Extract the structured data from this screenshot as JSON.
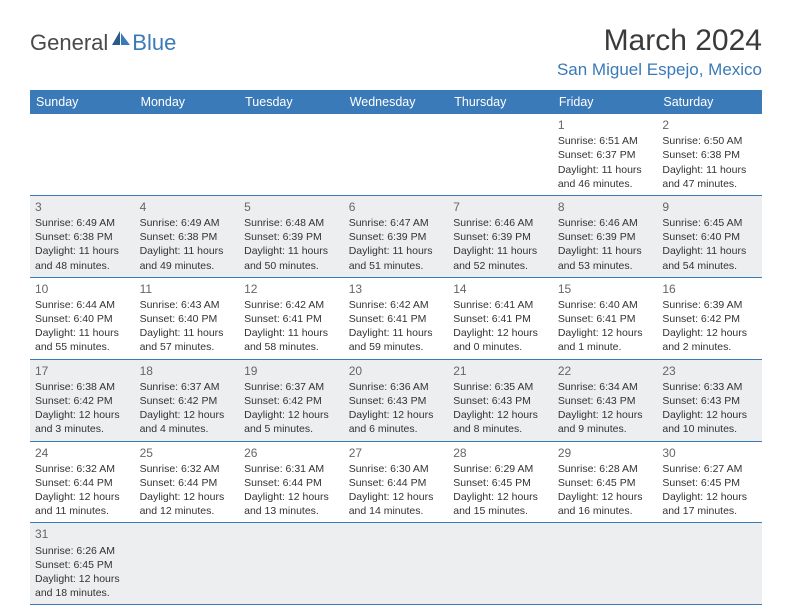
{
  "logo": {
    "general": "General",
    "blue": "Blue"
  },
  "title": "March 2024",
  "location": "San Miguel Espejo, Mexico",
  "day_headers": [
    "Sunday",
    "Monday",
    "Tuesday",
    "Wednesday",
    "Thursday",
    "Friday",
    "Saturday"
  ],
  "colors": {
    "brand_blue": "#3a7ab8",
    "header_text": "#ffffff",
    "body_text": "#333333",
    "alt_row_bg": "#eceef0",
    "border": "#3a7ab8"
  },
  "weeks": [
    [
      null,
      null,
      null,
      null,
      null,
      {
        "n": "1",
        "sr": "Sunrise: 6:51 AM",
        "ss": "Sunset: 6:37 PM",
        "dl": "Daylight: 11 hours and 46 minutes."
      },
      {
        "n": "2",
        "sr": "Sunrise: 6:50 AM",
        "ss": "Sunset: 6:38 PM",
        "dl": "Daylight: 11 hours and 47 minutes."
      }
    ],
    [
      {
        "n": "3",
        "sr": "Sunrise: 6:49 AM",
        "ss": "Sunset: 6:38 PM",
        "dl": "Daylight: 11 hours and 48 minutes."
      },
      {
        "n": "4",
        "sr": "Sunrise: 6:49 AM",
        "ss": "Sunset: 6:38 PM",
        "dl": "Daylight: 11 hours and 49 minutes."
      },
      {
        "n": "5",
        "sr": "Sunrise: 6:48 AM",
        "ss": "Sunset: 6:39 PM",
        "dl": "Daylight: 11 hours and 50 minutes."
      },
      {
        "n": "6",
        "sr": "Sunrise: 6:47 AM",
        "ss": "Sunset: 6:39 PM",
        "dl": "Daylight: 11 hours and 51 minutes."
      },
      {
        "n": "7",
        "sr": "Sunrise: 6:46 AM",
        "ss": "Sunset: 6:39 PM",
        "dl": "Daylight: 11 hours and 52 minutes."
      },
      {
        "n": "8",
        "sr": "Sunrise: 6:46 AM",
        "ss": "Sunset: 6:39 PM",
        "dl": "Daylight: 11 hours and 53 minutes."
      },
      {
        "n": "9",
        "sr": "Sunrise: 6:45 AM",
        "ss": "Sunset: 6:40 PM",
        "dl": "Daylight: 11 hours and 54 minutes."
      }
    ],
    [
      {
        "n": "10",
        "sr": "Sunrise: 6:44 AM",
        "ss": "Sunset: 6:40 PM",
        "dl": "Daylight: 11 hours and 55 minutes."
      },
      {
        "n": "11",
        "sr": "Sunrise: 6:43 AM",
        "ss": "Sunset: 6:40 PM",
        "dl": "Daylight: 11 hours and 57 minutes."
      },
      {
        "n": "12",
        "sr": "Sunrise: 6:42 AM",
        "ss": "Sunset: 6:41 PM",
        "dl": "Daylight: 11 hours and 58 minutes."
      },
      {
        "n": "13",
        "sr": "Sunrise: 6:42 AM",
        "ss": "Sunset: 6:41 PM",
        "dl": "Daylight: 11 hours and 59 minutes."
      },
      {
        "n": "14",
        "sr": "Sunrise: 6:41 AM",
        "ss": "Sunset: 6:41 PM",
        "dl": "Daylight: 12 hours and 0 minutes."
      },
      {
        "n": "15",
        "sr": "Sunrise: 6:40 AM",
        "ss": "Sunset: 6:41 PM",
        "dl": "Daylight: 12 hours and 1 minute."
      },
      {
        "n": "16",
        "sr": "Sunrise: 6:39 AM",
        "ss": "Sunset: 6:42 PM",
        "dl": "Daylight: 12 hours and 2 minutes."
      }
    ],
    [
      {
        "n": "17",
        "sr": "Sunrise: 6:38 AM",
        "ss": "Sunset: 6:42 PM",
        "dl": "Daylight: 12 hours and 3 minutes."
      },
      {
        "n": "18",
        "sr": "Sunrise: 6:37 AM",
        "ss": "Sunset: 6:42 PM",
        "dl": "Daylight: 12 hours and 4 minutes."
      },
      {
        "n": "19",
        "sr": "Sunrise: 6:37 AM",
        "ss": "Sunset: 6:42 PM",
        "dl": "Daylight: 12 hours and 5 minutes."
      },
      {
        "n": "20",
        "sr": "Sunrise: 6:36 AM",
        "ss": "Sunset: 6:43 PM",
        "dl": "Daylight: 12 hours and 6 minutes."
      },
      {
        "n": "21",
        "sr": "Sunrise: 6:35 AM",
        "ss": "Sunset: 6:43 PM",
        "dl": "Daylight: 12 hours and 8 minutes."
      },
      {
        "n": "22",
        "sr": "Sunrise: 6:34 AM",
        "ss": "Sunset: 6:43 PM",
        "dl": "Daylight: 12 hours and 9 minutes."
      },
      {
        "n": "23",
        "sr": "Sunrise: 6:33 AM",
        "ss": "Sunset: 6:43 PM",
        "dl": "Daylight: 12 hours and 10 minutes."
      }
    ],
    [
      {
        "n": "24",
        "sr": "Sunrise: 6:32 AM",
        "ss": "Sunset: 6:44 PM",
        "dl": "Daylight: 12 hours and 11 minutes."
      },
      {
        "n": "25",
        "sr": "Sunrise: 6:32 AM",
        "ss": "Sunset: 6:44 PM",
        "dl": "Daylight: 12 hours and 12 minutes."
      },
      {
        "n": "26",
        "sr": "Sunrise: 6:31 AM",
        "ss": "Sunset: 6:44 PM",
        "dl": "Daylight: 12 hours and 13 minutes."
      },
      {
        "n": "27",
        "sr": "Sunrise: 6:30 AM",
        "ss": "Sunset: 6:44 PM",
        "dl": "Daylight: 12 hours and 14 minutes."
      },
      {
        "n": "28",
        "sr": "Sunrise: 6:29 AM",
        "ss": "Sunset: 6:45 PM",
        "dl": "Daylight: 12 hours and 15 minutes."
      },
      {
        "n": "29",
        "sr": "Sunrise: 6:28 AM",
        "ss": "Sunset: 6:45 PM",
        "dl": "Daylight: 12 hours and 16 minutes."
      },
      {
        "n": "30",
        "sr": "Sunrise: 6:27 AM",
        "ss": "Sunset: 6:45 PM",
        "dl": "Daylight: 12 hours and 17 minutes."
      }
    ],
    [
      {
        "n": "31",
        "sr": "Sunrise: 6:26 AM",
        "ss": "Sunset: 6:45 PM",
        "dl": "Daylight: 12 hours and 18 minutes."
      },
      null,
      null,
      null,
      null,
      null,
      null
    ]
  ]
}
